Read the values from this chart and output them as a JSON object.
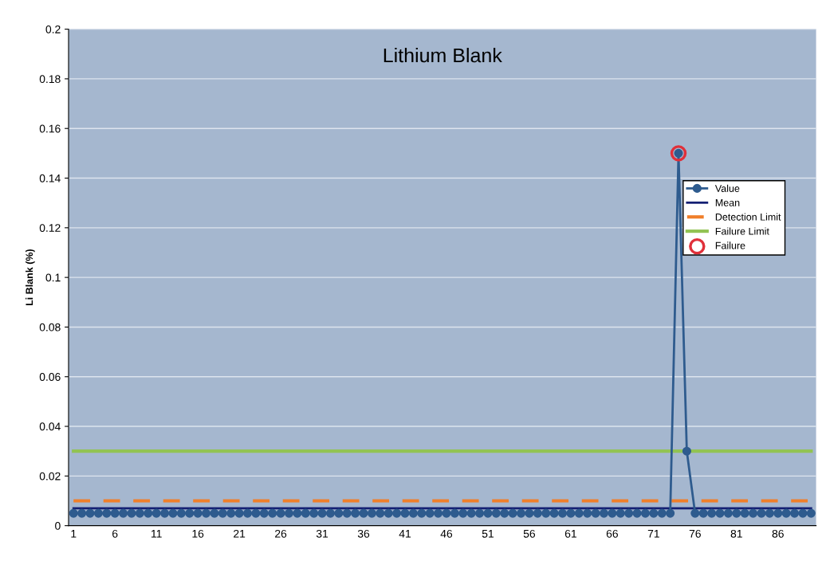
{
  "chart_data": {
    "type": "line",
    "title": "Lithium Blank",
    "ylabel": "Li Blank (%)",
    "categories": [
      "1",
      null,
      null,
      null,
      null,
      "6",
      null,
      null,
      null,
      null,
      "11",
      null,
      null,
      null,
      null,
      "16",
      null,
      null,
      null,
      null,
      "21",
      null,
      null,
      null,
      null,
      "26",
      null,
      null,
      null,
      null,
      "31",
      null,
      null,
      null,
      null,
      "36",
      null,
      null,
      null,
      null,
      "41",
      null,
      null,
      null,
      null,
      "46",
      null,
      null,
      null,
      null,
      "51",
      null,
      null,
      null,
      null,
      "56",
      null,
      null,
      null,
      null,
      "61",
      null,
      null,
      null,
      null,
      "66",
      null,
      null,
      null,
      null,
      "71",
      null,
      null,
      null,
      null,
      "76",
      null,
      null,
      null,
      null,
      "81",
      null,
      null,
      null,
      null,
      "86",
      null,
      null,
      null,
      null
    ],
    "series": [
      {
        "name": "Value",
        "color": "#2e5b8e",
        "marker": "circle",
        "line_style": "solid",
        "values": [
          0.005,
          0.005,
          0.005,
          0.005,
          0.005,
          0.005,
          0.005,
          0.005,
          0.005,
          0.005,
          0.005,
          0.005,
          0.005,
          0.005,
          0.005,
          0.005,
          0.005,
          0.005,
          0.005,
          0.005,
          0.005,
          0.005,
          0.005,
          0.005,
          0.005,
          0.005,
          0.005,
          0.005,
          0.005,
          0.005,
          0.005,
          0.005,
          0.005,
          0.005,
          0.005,
          0.005,
          0.005,
          0.005,
          0.005,
          0.005,
          0.005,
          0.005,
          0.005,
          0.005,
          0.005,
          0.005,
          0.005,
          0.005,
          0.005,
          0.005,
          0.005,
          0.005,
          0.005,
          0.005,
          0.005,
          0.005,
          0.005,
          0.005,
          0.005,
          0.005,
          0.005,
          0.005,
          0.005,
          0.005,
          0.005,
          0.005,
          0.005,
          0.005,
          0.005,
          0.005,
          0.005,
          0.005,
          0.005,
          0.15,
          0.03,
          0.005,
          0.005,
          0.005,
          0.005,
          0.005,
          0.005,
          0.005,
          0.005,
          0.005,
          0.005,
          0.005,
          0.005,
          0.005,
          0.005,
          0.005
        ]
      },
      {
        "name": "Mean",
        "color": "#141f73",
        "marker": "none",
        "line_style": "solid",
        "values": [
          0.007,
          0.007,
          0.007,
          0.007,
          0.007,
          0.007,
          0.007,
          0.007,
          0.007,
          0.007,
          0.007,
          0.007,
          0.007,
          0.007,
          0.007,
          0.007,
          0.007,
          0.007,
          0.007,
          0.007,
          0.007,
          0.007,
          0.007,
          0.007,
          0.007,
          0.007,
          0.007,
          0.007,
          0.007,
          0.007,
          0.007,
          0.007,
          0.007,
          0.007,
          0.007,
          0.007,
          0.007,
          0.007,
          0.007,
          0.007,
          0.007,
          0.007,
          0.007,
          0.007,
          0.007,
          0.007,
          0.007,
          0.007,
          0.007,
          0.007,
          0.007,
          0.007,
          0.007,
          0.007,
          0.007,
          0.007,
          0.007,
          0.007,
          0.007,
          0.007,
          0.007,
          0.007,
          0.007,
          0.007,
          0.007,
          0.007,
          0.007,
          0.007,
          0.007,
          0.007,
          0.007,
          0.007,
          0.007,
          0.007,
          0.007,
          0.007,
          0.007,
          0.007,
          0.007,
          0.007,
          0.007,
          0.007,
          0.007,
          0.007,
          0.007,
          0.007,
          0.007,
          0.007,
          0.007,
          0.007
        ]
      },
      {
        "name": "Detection Limit",
        "color": "#f07f2a",
        "marker": "none",
        "line_style": "dashed",
        "values": [
          0.01,
          0.01,
          0.01,
          0.01,
          0.01,
          0.01,
          0.01,
          0.01,
          0.01,
          0.01,
          0.01,
          0.01,
          0.01,
          0.01,
          0.01,
          0.01,
          0.01,
          0.01,
          0.01,
          0.01,
          0.01,
          0.01,
          0.01,
          0.01,
          0.01,
          0.01,
          0.01,
          0.01,
          0.01,
          0.01,
          0.01,
          0.01,
          0.01,
          0.01,
          0.01,
          0.01,
          0.01,
          0.01,
          0.01,
          0.01,
          0.01,
          0.01,
          0.01,
          0.01,
          0.01,
          0.01,
          0.01,
          0.01,
          0.01,
          0.01,
          0.01,
          0.01,
          0.01,
          0.01,
          0.01,
          0.01,
          0.01,
          0.01,
          0.01,
          0.01,
          0.01,
          0.01,
          0.01,
          0.01,
          0.01,
          0.01,
          0.01,
          0.01,
          0.01,
          0.01,
          0.01,
          0.01,
          0.01,
          0.01,
          0.01,
          0.01,
          0.01,
          0.01,
          0.01,
          0.01,
          0.01,
          0.01,
          0.01,
          0.01,
          0.01,
          0.01,
          0.01,
          0.01,
          0.01,
          0.01
        ]
      },
      {
        "name": "Failure Limit",
        "color": "#92c353",
        "marker": "none",
        "line_style": "solid",
        "values": [
          0.03,
          0.03,
          0.03,
          0.03,
          0.03,
          0.03,
          0.03,
          0.03,
          0.03,
          0.03,
          0.03,
          0.03,
          0.03,
          0.03,
          0.03,
          0.03,
          0.03,
          0.03,
          0.03,
          0.03,
          0.03,
          0.03,
          0.03,
          0.03,
          0.03,
          0.03,
          0.03,
          0.03,
          0.03,
          0.03,
          0.03,
          0.03,
          0.03,
          0.03,
          0.03,
          0.03,
          0.03,
          0.03,
          0.03,
          0.03,
          0.03,
          0.03,
          0.03,
          0.03,
          0.03,
          0.03,
          0.03,
          0.03,
          0.03,
          0.03,
          0.03,
          0.03,
          0.03,
          0.03,
          0.03,
          0.03,
          0.03,
          0.03,
          0.03,
          0.03,
          0.03,
          0.03,
          0.03,
          0.03,
          0.03,
          0.03,
          0.03,
          0.03,
          0.03,
          0.03,
          0.03,
          0.03,
          0.03,
          0.03,
          0.03,
          0.03,
          0.03,
          0.03,
          0.03,
          0.03,
          0.03,
          0.03,
          0.03,
          0.03,
          0.03,
          0.03,
          0.03,
          0.03,
          0.03,
          0.03
        ]
      },
      {
        "name": "Failure",
        "type": "scatter",
        "color": "#e0303a",
        "marker": "circle",
        "values": [
          null,
          null,
          null,
          null,
          null,
          null,
          null,
          null,
          null,
          null,
          null,
          null,
          null,
          null,
          null,
          null,
          null,
          null,
          null,
          null,
          null,
          null,
          null,
          null,
          null,
          null,
          null,
          null,
          null,
          null,
          null,
          null,
          null,
          null,
          null,
          null,
          null,
          null,
          null,
          null,
          null,
          null,
          null,
          null,
          null,
          null,
          null,
          null,
          null,
          null,
          null,
          null,
          null,
          null,
          null,
          null,
          null,
          null,
          null,
          null,
          null,
          null,
          null,
          null,
          null,
          null,
          null,
          null,
          null,
          null,
          null,
          null,
          null,
          0.15,
          null,
          null,
          null,
          null,
          null,
          null,
          null,
          null,
          null,
          null,
          null,
          null,
          null,
          null,
          null,
          null
        ]
      }
    ],
    "ylim": [
      0,
      0.2
    ],
    "yticks": [
      0,
      0.02,
      0.04,
      0.06,
      0.08,
      0.1,
      0.12,
      0.14,
      0.16,
      0.18,
      0.2
    ],
    "grid": "y",
    "legend": "right"
  }
}
